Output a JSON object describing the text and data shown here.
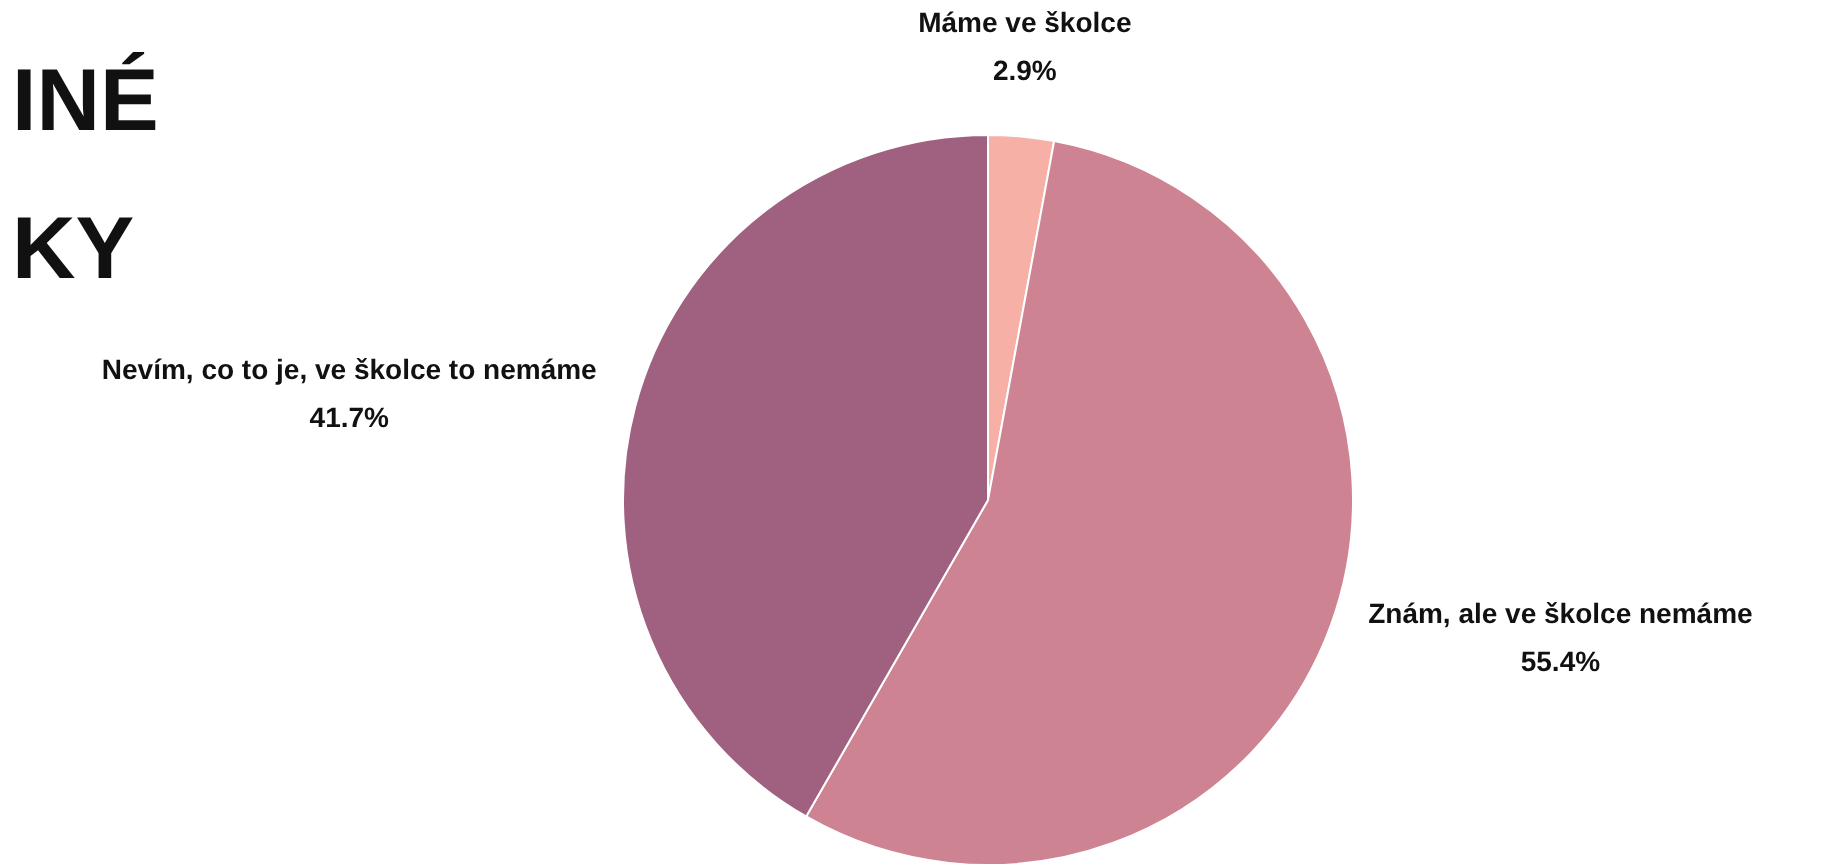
{
  "chart_data": {
    "type": "pie",
    "title": "INÉ\nKY",
    "categories": [
      "Máme ve školce",
      "Znám, ale ve školce nemáme",
      "Nevím, co to je, ve školce to nemáme"
    ],
    "values": [
      2.9,
      55.4,
      41.7
    ],
    "value_labels": [
      "2.9%",
      "55.4%",
      "41.7%"
    ],
    "colors": [
      "#f7b0a6",
      "#cd8392",
      "#a06080"
    ],
    "legend": false
  }
}
